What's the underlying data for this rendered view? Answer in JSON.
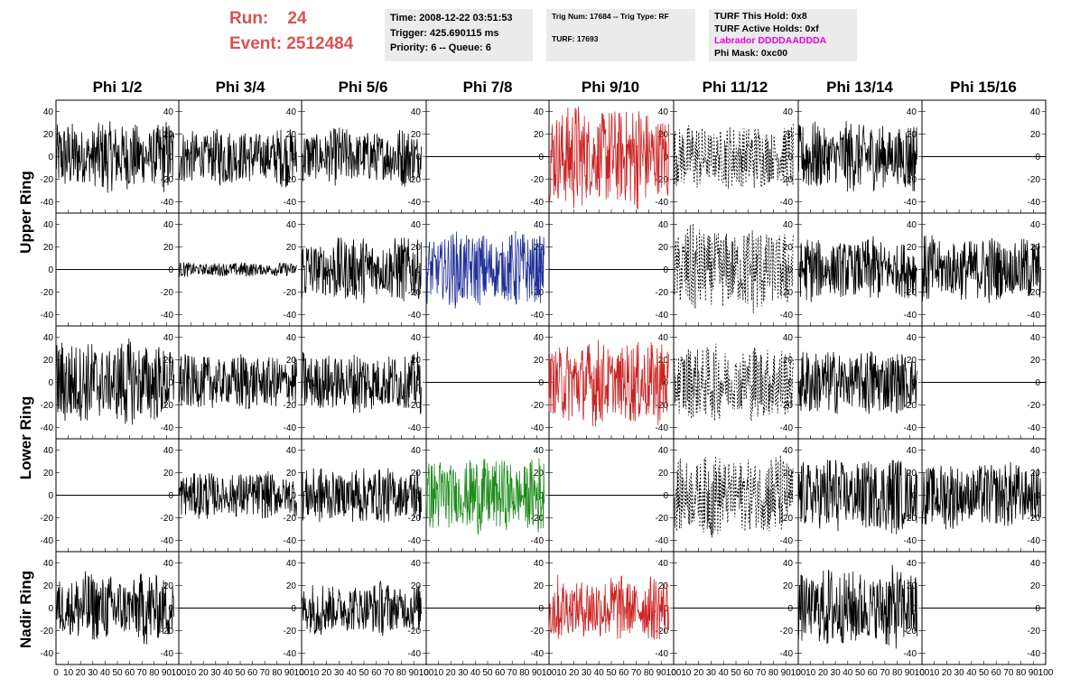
{
  "header": {
    "run_label": "Run:    24",
    "event_label": "Event: 2512484",
    "time_box": {
      "time": "Time: 2008-12-22 03:51:53",
      "trigger": "Trigger: 425.690115 ms",
      "priority": "Priority: 6 -- Queue: 6"
    },
    "trig_box": {
      "trig": "Trig Num: 17684 -- Trig Type: RF",
      "turf": "TURF: 17693"
    },
    "turf_box": {
      "this_hold": "TURF This Hold: 0x8",
      "active_holds": "TURF Active Holds: 0xf",
      "labrador": "Labrador DDDDAADDDA",
      "phi_mask": "Phi Mask: 0xc00"
    }
  },
  "colors": {
    "black": "#000000",
    "red": "#cc2222",
    "blue": "#1f2f9a",
    "green": "#1c8c1c"
  },
  "chart_data": {
    "type": "line",
    "columns": [
      "Phi 1/2",
      "Phi 3/4",
      "Phi 5/6",
      "Phi 7/8",
      "Phi 9/10",
      "Phi 11/12",
      "Phi 13/14",
      "Phi 15/16"
    ],
    "row_labels": [
      "Upper Ring",
      "Lower Ring",
      "Nadir Ring"
    ],
    "xlim": [
      0,
      100
    ],
    "ylim": [
      -50,
      50
    ],
    "x_ticks": [
      0,
      10,
      20,
      30,
      40,
      50,
      60,
      70,
      80,
      90,
      100
    ],
    "x_tick_labels": [
      "0",
      "10",
      "20",
      "30",
      "40",
      "50",
      "60",
      "70",
      "80",
      "90",
      "100"
    ],
    "y_ticks": [
      -40,
      -20,
      0,
      20,
      40
    ],
    "y_tick_labels": [
      "-40",
      "-20",
      "0",
      "20",
      "40"
    ],
    "panels": [
      [
        "noise:black:15",
        "noise:black:12",
        "noise:black:12",
        "flat",
        "noise:red:22",
        "dashed:black:14",
        "noise:black:15",
        "flat"
      ],
      [
        "flat",
        "noise:black:3",
        "noise:black:14",
        "noise:blue:16",
        "flat",
        "dashed:black:18",
        "noise:black:13",
        "noise:black:14"
      ],
      [
        "noise:black:18",
        "noise:black:12",
        "noise:black:13",
        "flat",
        "noise:red:18",
        "dashed:black:16",
        "noise:black:14",
        "flat"
      ],
      [
        "flat",
        "noise:black:10",
        "noise:black:12",
        "noise:green:16",
        "flat",
        "dashed:black:17",
        "noise:black:16",
        "noise:black:14"
      ],
      [
        "noise:black:15",
        "flat",
        "noise:black:11",
        "flat",
        "noise:red:14",
        "flat",
        "noise:black:17",
        "flat"
      ]
    ]
  }
}
